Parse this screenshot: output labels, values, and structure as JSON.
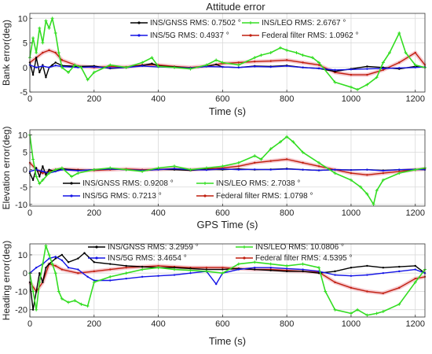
{
  "figure": {
    "title": "Attitude error"
  },
  "colors": {
    "gnss": "#000000",
    "g5": "#1414e6",
    "leo": "#33dd22",
    "fed": "#c01e0e",
    "fed_band": "#f3b8c0",
    "grid": "#d9d9d9"
  },
  "chart_data": [
    {
      "type": "line",
      "title": "Attitude error",
      "xlabel": "Time (s)",
      "ylabel": "Bank error(deg)",
      "xlim": [
        0,
        1230
      ],
      "ylim": [
        -5,
        11
      ],
      "xticks": [
        "0",
        "200",
        "400",
        "600",
        "800",
        "1000",
        "1200"
      ],
      "yticks": [
        "-5",
        "0",
        "5",
        "10"
      ],
      "grid": true,
      "legend": [
        "INS/GNSS RMS: 0.7502 °",
        "INS/LEO RMS: 2.6767 °",
        "INS/5G RMS: 0.4937 °",
        "Federal filter RMS: 1.0962 °"
      ],
      "series": [
        {
          "name": "INS/GNSS RMS: 0.7502 °",
          "key": "gnss",
          "x": [
            0,
            10,
            20,
            30,
            40,
            50,
            60,
            70,
            80,
            100,
            150,
            200,
            250,
            300,
            350,
            380,
            400,
            450,
            500,
            550,
            580,
            600,
            650,
            700,
            750,
            800,
            850,
            900,
            950,
            1000,
            1050,
            1100,
            1150,
            1200,
            1230
          ],
          "y": [
            1.0,
            -1.5,
            2.0,
            -1.0,
            0.5,
            -2.0,
            0.0,
            0.5,
            1.0,
            0.4,
            0.2,
            0.3,
            -0.2,
            0.0,
            0.4,
            0.8,
            0.3,
            0.1,
            -0.1,
            0.2,
            0.6,
            0.1,
            0.0,
            0.3,
            0.2,
            0.4,
            0.0,
            -0.2,
            -0.8,
            -0.3,
            0.2,
            0.0,
            -0.3,
            0.2,
            0.0
          ]
        },
        {
          "name": "INS/5G RMS: 0.4937 °",
          "key": "g5",
          "x": [
            0,
            20,
            40,
            60,
            80,
            100,
            150,
            200,
            250,
            300,
            350,
            400,
            450,
            500,
            550,
            600,
            650,
            700,
            750,
            800,
            850,
            900,
            950,
            1000,
            1050,
            1100,
            1150,
            1200,
            1230
          ],
          "y": [
            0.5,
            0.0,
            0.3,
            0.0,
            0.4,
            0.2,
            0.0,
            0.1,
            -0.1,
            0.0,
            0.3,
            0.1,
            0.0,
            -0.1,
            0.2,
            0.1,
            0.0,
            0.2,
            0.1,
            0.3,
            0.0,
            -0.2,
            -0.5,
            -0.4,
            -0.3,
            -0.2,
            -0.1,
            0.0,
            0.1
          ]
        },
        {
          "name": "INS/LEO RMS: 2.6767 °",
          "key": "leo",
          "x": [
            0,
            10,
            20,
            30,
            40,
            50,
            60,
            70,
            80,
            90,
            100,
            120,
            140,
            160,
            180,
            200,
            250,
            300,
            350,
            380,
            400,
            450,
            500,
            550,
            580,
            600,
            650,
            700,
            720,
            750,
            780,
            800,
            830,
            850,
            880,
            900,
            950,
            1000,
            1020,
            1050,
            1080,
            1100,
            1120,
            1150,
            1170,
            1200,
            1230
          ],
          "y": [
            2.0,
            6.0,
            3.0,
            8.0,
            5.0,
            9.5,
            8.0,
            10.0,
            7.0,
            3.0,
            0.0,
            -1.0,
            0.5,
            0.0,
            -2.5,
            -1.0,
            0.5,
            0.0,
            1.0,
            2.0,
            0.2,
            0.0,
            -0.3,
            0.5,
            1.5,
            1.0,
            0.5,
            2.0,
            2.5,
            3.0,
            4.0,
            3.5,
            3.0,
            2.5,
            2.0,
            1.0,
            -3.0,
            -4.0,
            -4.5,
            -3.5,
            -2.0,
            1.0,
            3.0,
            7.0,
            3.0,
            0.5,
            0.0
          ]
        },
        {
          "name": "Federal filter RMS: 1.0962 °",
          "key": "fed",
          "x": [
            0,
            20,
            40,
            60,
            80,
            100,
            150,
            200,
            250,
            300,
            350,
            400,
            450,
            500,
            550,
            600,
            650,
            700,
            750,
            800,
            850,
            900,
            950,
            1000,
            1050,
            1100,
            1150,
            1200,
            1230
          ],
          "y": [
            1.0,
            2.0,
            3.0,
            3.5,
            3.0,
            1.5,
            0.3,
            0.0,
            0.2,
            0.1,
            0.5,
            0.5,
            0.2,
            0.0,
            0.3,
            0.8,
            1.0,
            1.2,
            1.3,
            1.5,
            1.0,
            0.5,
            -1.0,
            -1.5,
            -1.5,
            -0.5,
            1.0,
            3.0,
            0.5
          ]
        }
      ]
    },
    {
      "type": "line",
      "xlabel": "GPS Time (s)",
      "ylabel": "Elevation error(deg)",
      "xlim": [
        0,
        1230
      ],
      "ylim": [
        -10.5,
        11.5
      ],
      "xticks": [
        "0",
        "200",
        "400",
        "600",
        "800",
        "1000",
        "1200"
      ],
      "yticks": [
        "-10",
        "-5",
        "0",
        "5",
        "10"
      ],
      "grid": true,
      "legend": [
        "INS/GNSS RMS: 0.9208 °",
        "INS/LEO RMS: 2.7038 °",
        "INS/5G RMS: 0.7213 °",
        "Federal filter RMS: 1.0798 °"
      ],
      "series": [
        {
          "name": "INS/GNSS RMS: 0.9208 °",
          "key": "gnss",
          "x": [
            0,
            10,
            20,
            30,
            40,
            50,
            60,
            80,
            100,
            150,
            200,
            250,
            300,
            350,
            400,
            450,
            500,
            550,
            600,
            650,
            700,
            750,
            800,
            850,
            900,
            950,
            1000,
            1050,
            1100,
            1150,
            1200,
            1230
          ],
          "y": [
            -1.0,
            -3.0,
            0.5,
            -2.0,
            1.0,
            -1.5,
            0.0,
            -0.5,
            0.3,
            -0.2,
            0.0,
            0.2,
            0.0,
            -0.3,
            0.1,
            0.0,
            -0.2,
            0.1,
            0.0,
            0.2,
            0.0,
            0.1,
            0.3,
            0.0,
            -0.2,
            0.0,
            -0.1,
            0.0,
            -0.2,
            0.0,
            0.1,
            0.0
          ]
        },
        {
          "name": "INS/5G RMS: 0.7213 °",
          "key": "g5",
          "x": [
            0,
            20,
            40,
            60,
            80,
            100,
            150,
            200,
            250,
            300,
            350,
            400,
            450,
            500,
            550,
            600,
            650,
            700,
            750,
            800,
            850,
            900,
            950,
            1000,
            1050,
            1100,
            1150,
            1200,
            1230
          ],
          "y": [
            -0.5,
            0.0,
            -0.5,
            -1.0,
            -0.5,
            0.0,
            -0.3,
            0.0,
            0.2,
            0.0,
            -0.2,
            0.0,
            0.3,
            0.0,
            -0.1,
            0.2,
            0.0,
            0.1,
            0.0,
            0.2,
            0.0,
            -0.2,
            0.0,
            -0.1,
            0.0,
            -0.3,
            0.0,
            0.1,
            0.0
          ]
        },
        {
          "name": "INS/LEO RMS: 2.7038 °",
          "key": "leo",
          "x": [
            0,
            10,
            20,
            30,
            40,
            60,
            80,
            100,
            130,
            150,
            200,
            250,
            300,
            350,
            400,
            450,
            500,
            550,
            600,
            650,
            700,
            720,
            750,
            780,
            800,
            820,
            850,
            900,
            950,
            1000,
            1030,
            1050,
            1070,
            1080,
            1100,
            1150,
            1200,
            1230
          ],
          "y": [
            10.0,
            3.0,
            -2.0,
            -4.0,
            -3.0,
            -1.0,
            0.0,
            0.5,
            -2.0,
            -1.0,
            0.0,
            0.5,
            0.0,
            -0.5,
            0.5,
            1.0,
            0.0,
            0.5,
            1.0,
            2.0,
            4.0,
            3.0,
            6.0,
            8.0,
            9.5,
            8.0,
            5.0,
            2.0,
            -1.0,
            -3.0,
            -5.0,
            -7.0,
            -10.0,
            -6.0,
            -3.0,
            -1.0,
            0.0,
            0.5
          ]
        },
        {
          "name": "Federal filter RMS: 1.0798 °",
          "key": "fed",
          "x": [
            0,
            20,
            40,
            60,
            80,
            100,
            150,
            200,
            250,
            300,
            350,
            400,
            450,
            500,
            550,
            600,
            650,
            700,
            750,
            800,
            850,
            900,
            950,
            1000,
            1050,
            1100,
            1150,
            1200,
            1230
          ],
          "y": [
            2.0,
            0.0,
            -1.0,
            -0.5,
            0.0,
            0.2,
            0.0,
            -0.2,
            0.0,
            0.2,
            0.0,
            0.1,
            0.3,
            0.0,
            0.2,
            0.5,
            1.0,
            2.0,
            2.5,
            3.0,
            2.0,
            1.0,
            0.0,
            -1.0,
            -1.5,
            -1.0,
            -0.5,
            0.0,
            0.2
          ]
        }
      ]
    },
    {
      "type": "line",
      "xlabel": "Time (s)",
      "ylabel": "Heading error(deg)",
      "xlim": [
        0,
        1230
      ],
      "ylim": [
        -24,
        16
      ],
      "xticks": [
        "0",
        "200",
        "400",
        "600",
        "800",
        "1000",
        "1200"
      ],
      "yticks": [
        "-20",
        "-10",
        "0",
        "10"
      ],
      "grid": true,
      "legend": [
        "INS/GNSS RMS: 3.2959 °",
        "INS/LEO RMS: 10.0806 °",
        "INS/5G RMS: 3.4654 °",
        "Federal filter RMS: 4.5395 °"
      ],
      "series": [
        {
          "name": "INS/GNSS RMS: 3.2959 °",
          "key": "gnss",
          "x": [
            0,
            10,
            20,
            30,
            40,
            50,
            60,
            80,
            100,
            120,
            150,
            170,
            200,
            250,
            300,
            350,
            400,
            450,
            500,
            550,
            600,
            650,
            700,
            750,
            800,
            850,
            900,
            950,
            1000,
            1050,
            1100,
            1150,
            1200,
            1230
          ],
          "y": [
            -5.0,
            -20.0,
            -10.0,
            0.0,
            -5.0,
            3.0,
            5.0,
            8.0,
            10.0,
            6.0,
            8.0,
            11.0,
            6.0,
            5.0,
            4.0,
            3.5,
            3.0,
            3.0,
            2.5,
            2.0,
            2.0,
            2.5,
            2.0,
            1.5,
            1.0,
            1.0,
            0.0,
            1.0,
            3.0,
            4.0,
            3.0,
            3.5,
            4.0,
            0.0
          ]
        },
        {
          "name": "INS/5G RMS: 3.4654 °",
          "key": "g5",
          "x": [
            0,
            20,
            40,
            60,
            80,
            100,
            120,
            150,
            180,
            200,
            250,
            300,
            350,
            400,
            450,
            500,
            550,
            580,
            600,
            650,
            700,
            750,
            800,
            850,
            900,
            950,
            1000,
            1050,
            1100,
            1150,
            1200,
            1230
          ],
          "y": [
            0.0,
            3.0,
            5.0,
            8.0,
            9.0,
            7.0,
            3.0,
            2.0,
            -2.0,
            -4.0,
            -4.0,
            -3.0,
            -2.0,
            -1.5,
            -1.0,
            0.0,
            1.0,
            -6.0,
            0.0,
            2.0,
            3.0,
            3.0,
            2.5,
            2.0,
            1.0,
            -1.0,
            -1.5,
            -1.0,
            0.0,
            1.0,
            2.0,
            0.0
          ]
        },
        {
          "name": "INS/LEO RMS: 10.0806 °",
          "key": "leo",
          "x": [
            0,
            10,
            20,
            30,
            40,
            50,
            60,
            70,
            80,
            90,
            100,
            120,
            140,
            160,
            180,
            200,
            250,
            300,
            350,
            400,
            450,
            500,
            550,
            600,
            650,
            700,
            750,
            800,
            850,
            900,
            920,
            950,
            1000,
            1020,
            1050,
            1080,
            1100,
            1150,
            1200,
            1230
          ],
          "y": [
            0.0,
            -10.0,
            -20.0,
            -5.0,
            5.0,
            15.0,
            10.0,
            5.0,
            0.0,
            -10.0,
            -14.0,
            -16.0,
            -15.0,
            -17.0,
            -18.0,
            -5.0,
            -2.0,
            0.0,
            2.0,
            3.0,
            2.0,
            1.5,
            1.0,
            0.0,
            5.0,
            6.0,
            5.0,
            4.0,
            5.0,
            3.0,
            -10.0,
            -20.0,
            -22.0,
            -20.0,
            -23.0,
            -22.0,
            -21.0,
            -17.0,
            -5.0,
            2.0
          ]
        },
        {
          "name": "Federal filter RMS: 4.5395 °",
          "key": "fed",
          "x": [
            0,
            20,
            40,
            60,
            80,
            100,
            150,
            200,
            250,
            300,
            350,
            400,
            450,
            500,
            550,
            600,
            650,
            700,
            750,
            800,
            850,
            900,
            950,
            1000,
            1050,
            1100,
            1150,
            1200,
            1230
          ],
          "y": [
            -5.0,
            -10.0,
            -5.0,
            5.0,
            4.0,
            2.0,
            0.0,
            1.0,
            2.0,
            3.0,
            3.5,
            4.0,
            3.5,
            3.0,
            3.0,
            3.0,
            2.5,
            2.0,
            2.0,
            1.5,
            1.0,
            0.5,
            -5.0,
            -8.0,
            -10.0,
            -11.0,
            -8.0,
            -3.0,
            -2.0
          ]
        }
      ]
    }
  ]
}
